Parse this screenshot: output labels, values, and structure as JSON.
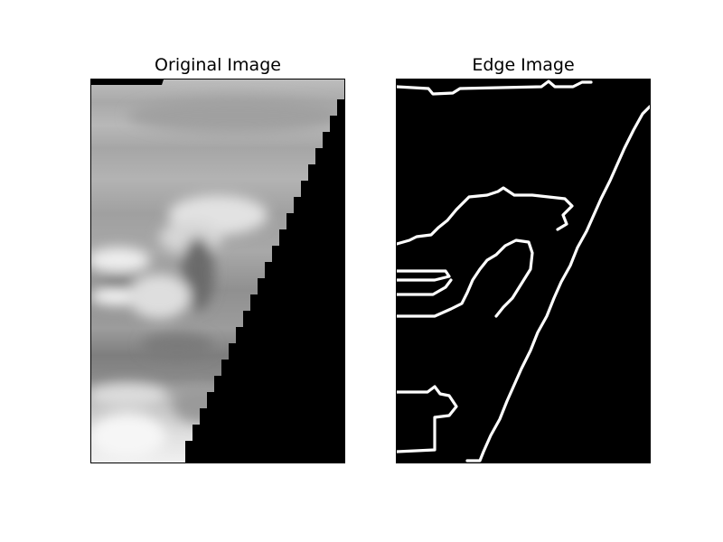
{
  "figure": {
    "panels": [
      {
        "title": "Original Image"
      },
      {
        "title": "Edge Image"
      }
    ]
  },
  "colors": {
    "background": "#ffffff",
    "image_dark": "#000000",
    "edge_line": "#ffffff"
  }
}
